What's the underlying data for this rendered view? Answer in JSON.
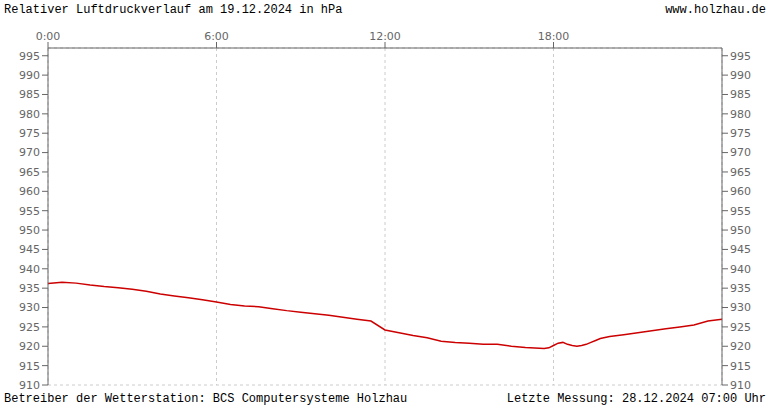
{
  "chart_data": {
    "type": "line",
    "title": "Relativer Luftdruckverlauf am 19.12.2024 in hPa",
    "annotations": [
      "www.holzhau.de",
      "Betreiber der Wetterstation: BCS Computersysteme Holzhau",
      "Letzte Messung: 28.12.2024 07:00 Uhr"
    ],
    "color": "#cc0000",
    "grid": true,
    "xlim": [
      0,
      1440
    ],
    "xticks": [
      {
        "value": 0,
        "label": "0:00"
      },
      {
        "value": 360,
        "label": "6:00"
      },
      {
        "value": 720,
        "label": "12:00"
      },
      {
        "value": 1080,
        "label": "18:00"
      }
    ],
    "ylim": [
      910,
      997
    ],
    "yticks": [
      910,
      915,
      920,
      925,
      930,
      935,
      940,
      945,
      950,
      955,
      960,
      965,
      970,
      975,
      980,
      985,
      990,
      995
    ],
    "x": [
      0,
      30,
      60,
      90,
      120,
      150,
      180,
      210,
      240,
      270,
      300,
      330,
      360,
      390,
      420,
      450,
      480,
      510,
      540,
      570,
      600,
      630,
      660,
      690,
      720,
      750,
      780,
      810,
      840,
      870,
      900,
      930,
      960,
      990,
      1020,
      1050,
      1060,
      1070,
      1080,
      1090,
      1100,
      1110,
      1120,
      1130,
      1140,
      1150,
      1160,
      1170,
      1180,
      1200,
      1230,
      1260,
      1290,
      1320,
      1350,
      1380,
      1410,
      1440
    ],
    "values": [
      936.2,
      936.5,
      936.3,
      935.8,
      935.4,
      935.1,
      934.7,
      934.2,
      933.5,
      933.0,
      932.5,
      932.0,
      931.4,
      930.8,
      930.4,
      930.2,
      929.7,
      929.2,
      928.8,
      928.4,
      928.0,
      927.5,
      927.0,
      926.5,
      924.2,
      923.5,
      922.8,
      922.2,
      921.3,
      921.0,
      920.8,
      920.5,
      920.5,
      920.0,
      919.7,
      919.5,
      919.4,
      919.6,
      920.2,
      920.8,
      921.0,
      920.5,
      920.2,
      920.0,
      920.2,
      920.5,
      921.0,
      921.5,
      922.0,
      922.5,
      923.0,
      923.5,
      924.0,
      924.5,
      925.0,
      925.5,
      926.5,
      927.0
    ]
  }
}
